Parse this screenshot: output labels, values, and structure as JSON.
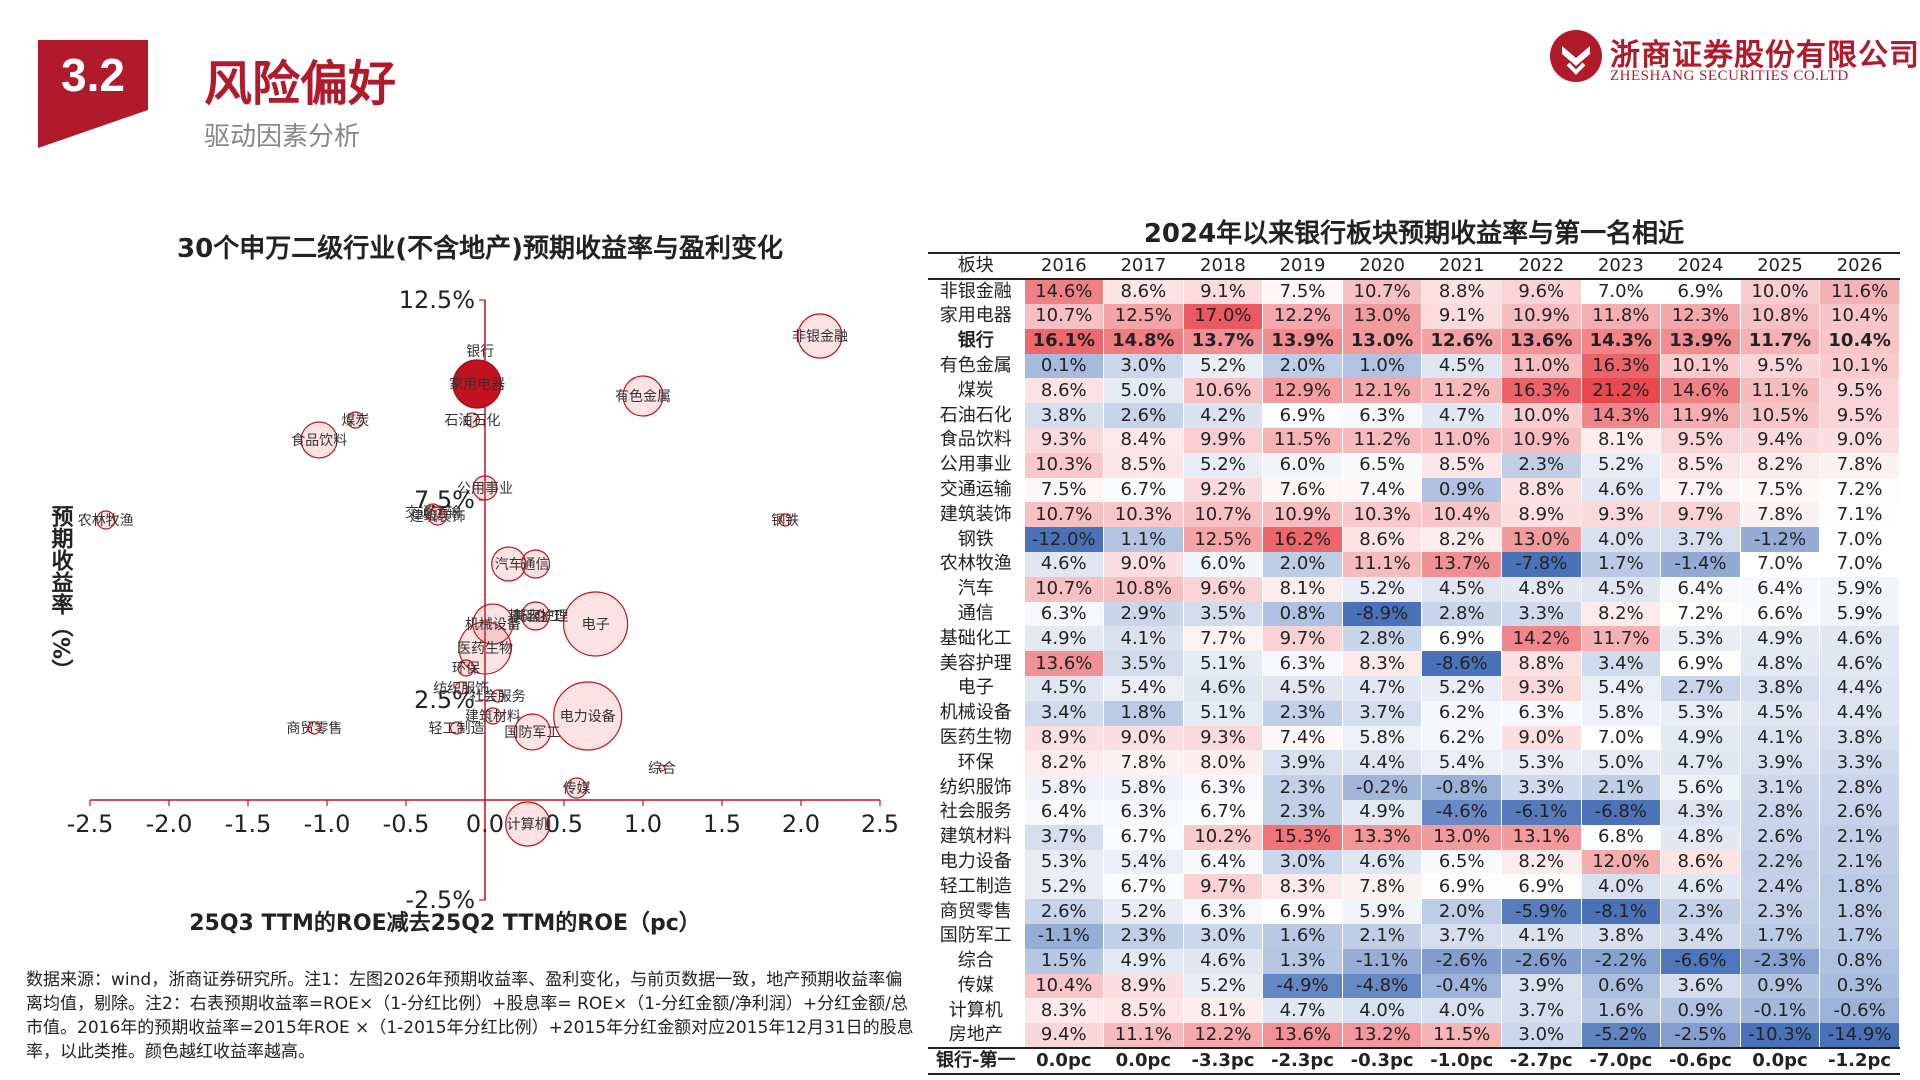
{
  "header": {
    "section_number": "3.2",
    "title": "风险偏好",
    "subtitle": "驱动因素分析",
    "logo_cn": "浙商证券股份有限公司",
    "logo_en": "ZHESHANG SECURITIES CO.LTD",
    "brand_color": "#b01a2a"
  },
  "chart_data": [
    {
      "type": "scatter",
      "title": "30个申万二级行业(不含地产)预期收益率与盈利变化",
      "xlabel": "25Q3 TTM的ROE减去25Q2 TTM的ROE（pc）",
      "ylabel": "预期收益率（%）",
      "xlim": [
        -2.5,
        2.5
      ],
      "ylim": [
        -2.5,
        12.5
      ],
      "x_ticks": [
        "-2.5",
        "-2.0",
        "-1.5",
        "-1.0",
        "-0.5",
        "0.0",
        "0.5",
        "1.0",
        "1.5",
        "2.0",
        "2.5"
      ],
      "y_ticks": [
        "12.5%",
        "7.5%",
        "2.5%",
        "-2.5%"
      ],
      "marker_color": "#c0131f",
      "points": [
        {
          "label": "非银金融",
          "x": 2.12,
          "y": 11.6,
          "r": 22
        },
        {
          "label": "银行",
          "x": -0.03,
          "y": 10.4,
          "r": 0
        },
        {
          "label": "家用电器",
          "x": -0.05,
          "y": 10.4,
          "r": 24
        },
        {
          "label": "有色金属",
          "x": 1.0,
          "y": 10.1,
          "r": 20
        },
        {
          "label": "煤炭",
          "x": -0.82,
          "y": 9.5,
          "r": 8
        },
        {
          "label": "石油石化",
          "x": -0.08,
          "y": 9.5,
          "r": 7
        },
        {
          "label": "食品饮料",
          "x": -1.05,
          "y": 9.0,
          "r": 18
        },
        {
          "label": "公用事业",
          "x": 0.0,
          "y": 7.8,
          "r": 12
        },
        {
          "label": "交通运输",
          "x": -0.33,
          "y": 7.2,
          "r": 8
        },
        {
          "label": "建筑装饰",
          "x": -0.3,
          "y": 7.1,
          "r": 9
        },
        {
          "label": "钢铁",
          "x": 1.9,
          "y": 7.0,
          "r": 6
        },
        {
          "label": "农林牧渔",
          "x": -2.4,
          "y": 7.0,
          "r": 9
        },
        {
          "label": "汽车",
          "x": 0.15,
          "y": 5.9,
          "r": 17
        },
        {
          "label": "通信",
          "x": 0.32,
          "y": 5.9,
          "r": 14
        },
        {
          "label": "基础化工",
          "x": 0.32,
          "y": 4.6,
          "r": 14
        },
        {
          "label": "美容护理",
          "x": 0.35,
          "y": 4.6,
          "r": 5
        },
        {
          "label": "电子",
          "x": 0.7,
          "y": 4.4,
          "r": 32
        },
        {
          "label": "机械设备",
          "x": 0.05,
          "y": 4.4,
          "r": 20
        },
        {
          "label": "医药生物",
          "x": 0.0,
          "y": 3.8,
          "r": 26
        },
        {
          "label": "环保",
          "x": -0.12,
          "y": 3.3,
          "r": 8
        },
        {
          "label": "纺织服饰",
          "x": -0.15,
          "y": 2.8,
          "r": 6
        },
        {
          "label": "社会服务",
          "x": 0.08,
          "y": 2.6,
          "r": 6
        },
        {
          "label": "建筑材料",
          "x": 0.05,
          "y": 2.1,
          "r": 8
        },
        {
          "label": "电力设备",
          "x": 0.65,
          "y": 2.1,
          "r": 34
        },
        {
          "label": "轻工制造",
          "x": -0.18,
          "y": 1.8,
          "r": 6
        },
        {
          "label": "商贸零售",
          "x": -1.08,
          "y": 1.8,
          "r": 6
        },
        {
          "label": "国防军工",
          "x": 0.3,
          "y": 1.7,
          "r": 18
        },
        {
          "label": "综合",
          "x": 1.12,
          "y": 0.8,
          "r": 3
        },
        {
          "label": "传媒",
          "x": 0.58,
          "y": 0.3,
          "r": 10
        },
        {
          "label": "计算机",
          "x": 0.27,
          "y": -0.6,
          "r": 22
        }
      ]
    },
    {
      "type": "table",
      "title": "2024年以来银行板块预期收益率与第一名相近",
      "columns": [
        "板块",
        "2016",
        "2017",
        "2018",
        "2019",
        "2020",
        "2021",
        "2022",
        "2023",
        "2024",
        "2025",
        "2026"
      ],
      "rows": [
        {
          "name": "非银金融",
          "values": [
            14.6,
            8.6,
            9.1,
            7.5,
            10.7,
            8.8,
            9.6,
            7.0,
            6.9,
            10.0,
            11.6
          ]
        },
        {
          "name": "家用电器",
          "values": [
            10.7,
            12.5,
            17.0,
            12.2,
            13.0,
            9.1,
            10.9,
            11.8,
            12.3,
            10.8,
            10.4
          ]
        },
        {
          "name": "银行",
          "values": [
            16.1,
            14.8,
            13.7,
            13.9,
            13.0,
            12.6,
            13.6,
            14.3,
            13.9,
            11.7,
            10.4
          ],
          "bold": true
        },
        {
          "name": "有色金属",
          "values": [
            0.1,
            3.0,
            5.2,
            2.0,
            1.0,
            4.5,
            11.0,
            16.3,
            10.1,
            9.5,
            10.1
          ]
        },
        {
          "name": "煤炭",
          "values": [
            8.6,
            5.0,
            10.6,
            12.9,
            12.1,
            11.2,
            16.3,
            21.2,
            14.6,
            11.1,
            9.5
          ]
        },
        {
          "name": "石油石化",
          "values": [
            3.8,
            2.6,
            4.2,
            6.9,
            6.3,
            4.7,
            10.0,
            14.3,
            11.9,
            10.5,
            9.5
          ]
        },
        {
          "name": "食品饮料",
          "values": [
            9.3,
            8.4,
            9.9,
            11.5,
            11.2,
            11.0,
            10.9,
            8.1,
            9.5,
            9.4,
            9.0
          ]
        },
        {
          "name": "公用事业",
          "values": [
            10.3,
            8.5,
            5.2,
            6.0,
            6.5,
            8.5,
            2.3,
            5.2,
            8.5,
            8.2,
            7.8
          ]
        },
        {
          "name": "交通运输",
          "values": [
            7.5,
            6.7,
            9.2,
            7.6,
            7.4,
            0.9,
            8.8,
            4.6,
            7.7,
            7.5,
            7.2
          ]
        },
        {
          "name": "建筑装饰",
          "values": [
            10.7,
            10.3,
            10.7,
            10.9,
            10.3,
            10.4,
            8.9,
            9.3,
            9.7,
            7.8,
            7.1
          ]
        },
        {
          "name": "钢铁",
          "values": [
            -12.0,
            1.1,
            12.5,
            16.2,
            8.6,
            8.2,
            13.0,
            4.0,
            3.7,
            -1.2,
            7.0
          ]
        },
        {
          "name": "农林牧渔",
          "values": [
            4.6,
            9.0,
            6.0,
            2.0,
            11.1,
            13.7,
            -7.8,
            1.7,
            -1.4,
            7.0,
            7.0
          ]
        },
        {
          "name": "汽车",
          "values": [
            10.7,
            10.8,
            9.6,
            8.1,
            5.2,
            4.5,
            4.8,
            4.5,
            6.4,
            6.4,
            5.9
          ]
        },
        {
          "name": "通信",
          "values": [
            6.3,
            2.9,
            3.5,
            0.8,
            -8.9,
            2.8,
            3.3,
            8.2,
            7.2,
            6.6,
            5.9
          ]
        },
        {
          "name": "基础化工",
          "values": [
            4.9,
            4.1,
            7.7,
            9.7,
            2.8,
            6.9,
            14.2,
            11.7,
            5.3,
            4.9,
            4.6
          ]
        },
        {
          "name": "美容护理",
          "values": [
            13.6,
            3.5,
            5.1,
            6.3,
            8.3,
            -8.6,
            8.8,
            3.4,
            6.9,
            4.8,
            4.6
          ]
        },
        {
          "name": "电子",
          "values": [
            4.5,
            5.4,
            4.6,
            4.5,
            4.7,
            5.2,
            9.3,
            5.4,
            2.7,
            3.8,
            4.4
          ]
        },
        {
          "name": "机械设备",
          "values": [
            3.4,
            1.8,
            5.1,
            2.3,
            3.7,
            6.2,
            6.3,
            5.8,
            5.3,
            4.5,
            4.4
          ]
        },
        {
          "name": "医药生物",
          "values": [
            8.9,
            9.0,
            9.3,
            7.4,
            5.8,
            6.2,
            9.0,
            7.0,
            4.9,
            4.1,
            3.8
          ]
        },
        {
          "name": "环保",
          "values": [
            8.2,
            7.8,
            8.0,
            3.9,
            4.4,
            5.4,
            5.3,
            5.0,
            4.7,
            3.9,
            3.3
          ]
        },
        {
          "name": "纺织服饰",
          "values": [
            5.8,
            5.8,
            6.3,
            2.3,
            -0.2,
            -0.8,
            3.3,
            2.1,
            5.6,
            3.1,
            2.8
          ]
        },
        {
          "name": "社会服务",
          "values": [
            6.4,
            6.3,
            6.7,
            2.3,
            4.9,
            -4.6,
            -6.1,
            -6.8,
            4.3,
            2.8,
            2.6
          ]
        },
        {
          "name": "建筑材料",
          "values": [
            3.7,
            6.7,
            10.2,
            15.3,
            13.3,
            13.0,
            13.1,
            6.8,
            4.8,
            2.6,
            2.1
          ]
        },
        {
          "name": "电力设备",
          "values": [
            5.3,
            5.4,
            6.4,
            3.0,
            4.6,
            6.5,
            8.2,
            12.0,
            8.6,
            2.2,
            2.1
          ]
        },
        {
          "name": "轻工制造",
          "values": [
            5.2,
            6.7,
            9.7,
            8.3,
            7.8,
            6.9,
            6.9,
            4.0,
            4.6,
            2.4,
            1.8
          ]
        },
        {
          "name": "商贸零售",
          "values": [
            2.6,
            5.2,
            6.3,
            6.9,
            5.9,
            2.0,
            -5.9,
            -8.1,
            2.3,
            2.3,
            1.8
          ]
        },
        {
          "name": "国防军工",
          "values": [
            -1.1,
            2.3,
            3.0,
            1.6,
            2.1,
            3.7,
            4.1,
            3.8,
            3.4,
            1.7,
            1.7
          ]
        },
        {
          "name": "综合",
          "values": [
            1.5,
            4.9,
            4.6,
            1.3,
            -1.1,
            -2.6,
            -2.6,
            -2.2,
            -6.6,
            -2.3,
            0.8
          ]
        },
        {
          "name": "传媒",
          "values": [
            10.4,
            8.9,
            5.2,
            -4.9,
            -4.8,
            -0.4,
            3.9,
            0.6,
            3.6,
            0.9,
            0.3
          ]
        },
        {
          "name": "计算机",
          "values": [
            8.3,
            8.5,
            8.1,
            4.7,
            4.0,
            4.0,
            3.7,
            1.6,
            0.9,
            -0.1,
            -0.6
          ]
        },
        {
          "name": "房地产",
          "values": [
            9.4,
            11.1,
            12.2,
            13.6,
            13.2,
            11.5,
            3.0,
            -5.2,
            -2.5,
            -10.3,
            -14.9
          ]
        }
      ],
      "diff_row": {
        "name": "银行-第一",
        "values": [
          "0.0pc",
          "0.0pc",
          "-3.3pc",
          "-2.3pc",
          "-0.3pc",
          "-1.0pc",
          "-2.7pc",
          "-7.0pc",
          "-0.6pc",
          "0.0pc",
          "-1.2pc"
        ]
      },
      "color_scale": {
        "high": "#e8484f",
        "mid": "#ffffff",
        "low": "#4a72b8"
      }
    }
  ],
  "footnote": "数据来源：wind，浙商证券研究所。注1：左图2026年预期收益率、盈利变化，与前页数据一致，地产预期收益率偏离均值，剔除。注2：右表预期收益率=ROE×（1-分红比例）+股息率= ROE×（1-分红金额/净利润）+分红金额/总市值。2016年的预期收益率=2015年ROE ×（1-2015年分红比例）+2015年分红金额对应2015年12月31日的股息率，以此类推。颜色越红收益率越高。"
}
